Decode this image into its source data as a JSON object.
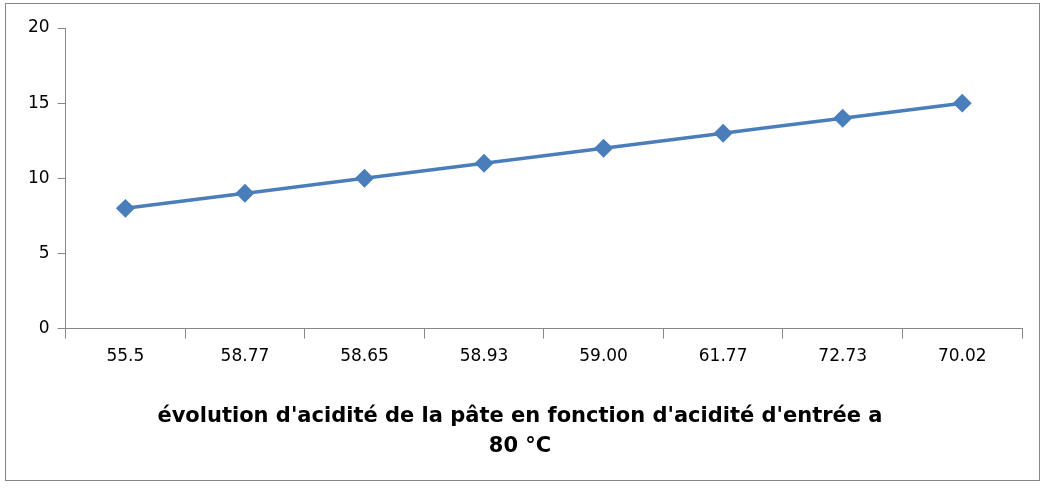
{
  "chart_data": {
    "type": "line",
    "xlabel": "évolution d'acidité de la pâte en fonction d'acidité d'entrée a 80 °C",
    "categories": [
      "55.5",
      "58.77",
      "58.65",
      "58.93",
      "59.00",
      "61.77",
      "72.73",
      "70.02"
    ],
    "series": [
      {
        "color": "#4a7ebb",
        "values": [
          8,
          9,
          10,
          11,
          12,
          13,
          14,
          15
        ]
      }
    ],
    "ylim": [
      0,
      20
    ],
    "yticks": [
      0,
      5,
      10,
      15,
      20
    ],
    "grid": false,
    "legend": false,
    "marker": "diamond",
    "line_style": "solid"
  }
}
